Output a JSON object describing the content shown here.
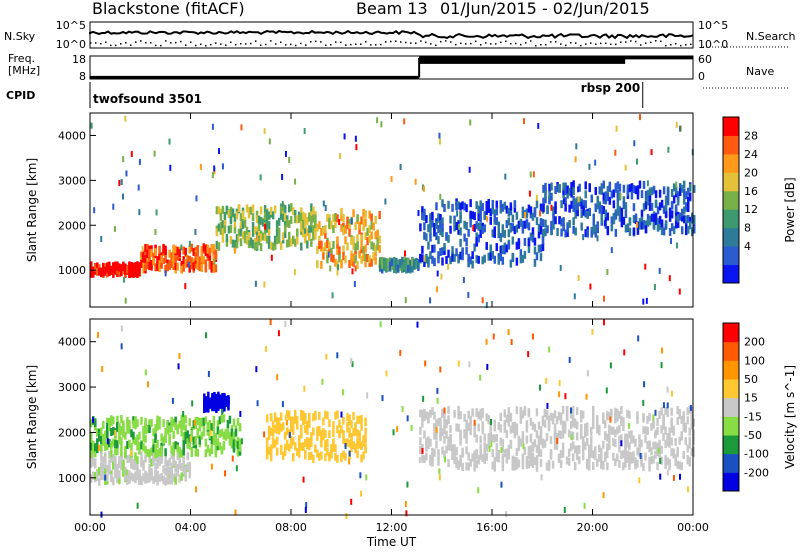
{
  "header": {
    "station": "Blackstone (fitACF)",
    "beam": "Beam 13",
    "date_range": "01/Jun/2015 - 02/Jun/2015"
  },
  "status_panel": {
    "nsky_label": "N.Sky",
    "nsky_ticks": [
      "10^5",
      "10^0"
    ],
    "nsearch_label": "N.Search",
    "nsearch_ticks": [
      "10^5",
      "10^0"
    ],
    "freq_label": "Freq.",
    "freq_unit": "[MHz]",
    "freq_ticks": [
      "18",
      "8"
    ],
    "nave_label": "Nave",
    "nave_ticks": [
      "60",
      "0"
    ],
    "cpid_label": "CPID",
    "cpid_modes": [
      {
        "name": "twofsound 3501",
        "start_hour": 0,
        "end_hour": 22
      },
      {
        "name": "rbsp 200",
        "start_hour": 22,
        "end_hour": 24
      }
    ],
    "freq_series": [
      {
        "start_hour": 0,
        "end_hour": 13.1,
        "freq_mhz": 8.3
      },
      {
        "start_hour": 13.1,
        "end_hour": 24,
        "freq_mhz": 17.6
      }
    ]
  },
  "chart_data": [
    {
      "type": "heatmap",
      "name": "power",
      "ylabel": "Slant Range [km]",
      "y_ticks": [
        1000,
        2000,
        3000,
        4000
      ],
      "ylim": [
        180,
        4500
      ],
      "xlim_hours": [
        0,
        24
      ],
      "colorbar_label": "Power [dB]",
      "colorbar_ticks": [
        "28",
        "24",
        "20",
        "16",
        "12",
        "8",
        "4"
      ],
      "colorbar_colors": [
        "#0a14f0",
        "#2a5cd0",
        "#2e7a9a",
        "#3e9a6e",
        "#78b04a",
        "#e3c23a",
        "#ff9a1a",
        "#ff5a12",
        "#ff0000"
      ],
      "bands": [
        {
          "hour_range": [
            0,
            2
          ],
          "range_km": [
            1000,
            1200
          ],
          "power_db": 28
        },
        {
          "hour_range": [
            2,
            5
          ],
          "range_km": [
            1100,
            1600
          ],
          "power_db": 24
        },
        {
          "hour_range": [
            5,
            9
          ],
          "range_km": [
            1600,
            2500
          ],
          "power_db": 16
        },
        {
          "hour_range": [
            9,
            11.5
          ],
          "range_km": [
            1200,
            2400
          ],
          "power_db": 20
        },
        {
          "hour_range": [
            11.5,
            13.1
          ],
          "range_km": [
            1100,
            1300
          ],
          "power_db": 12
        },
        {
          "hour_range": [
            13.1,
            18
          ],
          "range_km": [
            1200,
            2600
          ],
          "power_db": 8
        },
        {
          "hour_range": [
            18,
            24
          ],
          "range_km": [
            1900,
            3000
          ],
          "power_db": 8
        }
      ]
    },
    {
      "type": "heatmap",
      "name": "velocity",
      "ylabel": "Slant Range [km]",
      "y_ticks": [
        1000,
        2000,
        3000,
        4000
      ],
      "ylim": [
        180,
        4500
      ],
      "xlim_hours": [
        0,
        24
      ],
      "xlabel": "Time UT",
      "x_ticks": [
        "00:00",
        "04:00",
        "08:00",
        "12:00",
        "16:00",
        "20:00",
        "00:00"
      ],
      "colorbar_label": "Velocity [m s^-1]",
      "colorbar_ticks": [
        "200",
        "100",
        "50",
        "15",
        "-15",
        "-50",
        "-100",
        "-200"
      ],
      "colorbar_colors": [
        "#0000e0",
        "#1a50c0",
        "#1a9a3a",
        "#88dd44",
        "#c8c8c8",
        "#ffc832",
        "#ff9600",
        "#ff5a00",
        "#ff0000"
      ],
      "bands": [
        {
          "hour_range": [
            0,
            4
          ],
          "range_km": [
            1000,
            1600
          ],
          "velocity": -10
        },
        {
          "hour_range": [
            0,
            6
          ],
          "range_km": [
            1600,
            2400
          ],
          "velocity": -60
        },
        {
          "hour_range": [
            4.5,
            5.5
          ],
          "range_km": [
            2600,
            2900
          ],
          "velocity": -200
        },
        {
          "hour_range": [
            7,
            11
          ],
          "range_km": [
            1500,
            2500
          ],
          "velocity": 40
        },
        {
          "hour_range": [
            13.1,
            24
          ],
          "range_km": [
            1300,
            2600
          ],
          "velocity": 0
        }
      ]
    }
  ]
}
